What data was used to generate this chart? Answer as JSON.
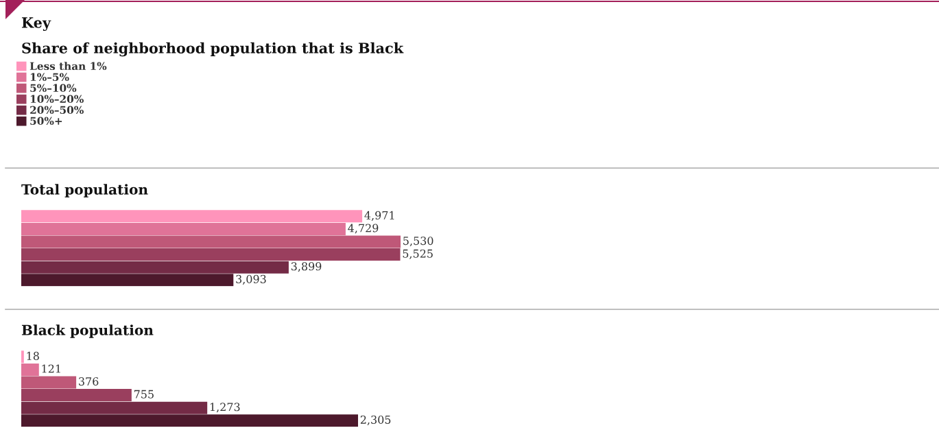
{
  "chart_data": [
    {
      "type": "bar",
      "orientation": "horizontal",
      "title": "Total population",
      "legend_title": "Share of neighborhood population that is Black",
      "annotations": [
        "Key"
      ],
      "legend": "top left",
      "categories": [
        null
      ],
      "series": [
        {
          "name": "Less than 1%",
          "color": "#ff94bb",
          "values": [
            4971
          ],
          "value_labels": [
            "4,971"
          ]
        },
        {
          "name": "1%–5%",
          "color": "#e07398",
          "values": [
            4729
          ],
          "value_labels": [
            "4,729"
          ]
        },
        {
          "name": "5%–10%",
          "color": "#bf5878",
          "values": [
            5530
          ],
          "value_labels": [
            "5,530"
          ]
        },
        {
          "name": "10%–20%",
          "color": "#9a3f5e",
          "values": [
            5525
          ],
          "value_labels": [
            "5,525"
          ]
        },
        {
          "name": "20%–50%",
          "color": "#742b46",
          "values": [
            3899
          ],
          "value_labels": [
            "3,899"
          ]
        },
        {
          "name": "50%+",
          "color": "#4d192c",
          "values": [
            3093
          ],
          "value_labels": [
            "3,093"
          ]
        }
      ]
    },
    {
      "type": "bar",
      "orientation": "horizontal",
      "title": "Black population",
      "categories": [
        null
      ],
      "series": [
        {
          "color": "#ff94bb",
          "values": [
            18
          ],
          "value_labels": [
            "18"
          ]
        },
        {
          "color": "#e07398",
          "values": [
            121
          ],
          "value_labels": [
            "121"
          ]
        },
        {
          "color": "#bf5878",
          "values": [
            376
          ],
          "value_labels": [
            "376"
          ]
        },
        {
          "color": "#9a3f5e",
          "values": [
            755
          ],
          "value_labels": [
            "755"
          ]
        },
        {
          "color": "#742b46",
          "values": [
            1273
          ],
          "value_labels": [
            "1,273"
          ]
        },
        {
          "color": "#4d192c",
          "values": [
            2305
          ],
          "value_labels": [
            "2,305"
          ]
        }
      ]
    }
  ]
}
